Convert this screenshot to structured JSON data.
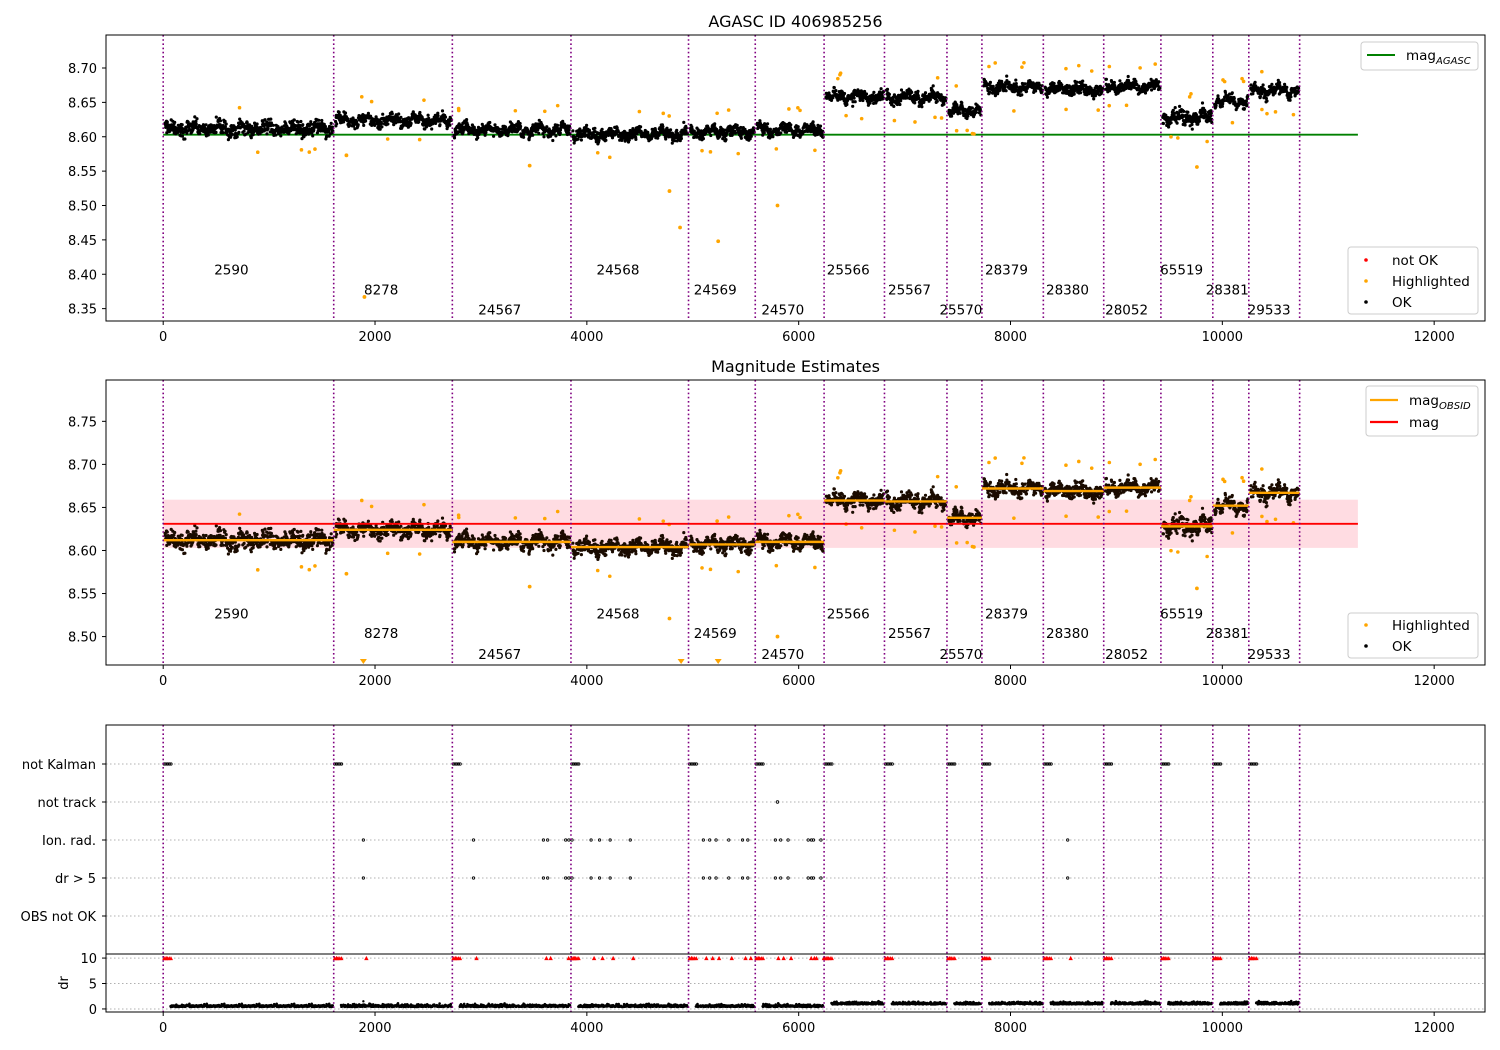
{
  "chart_data": [
    {
      "type": "scatter",
      "title": "AGASC ID 406985256",
      "xlim": [
        -540,
        12480
      ],
      "ylim": [
        8.332,
        8.748
      ],
      "x_ticks": [
        0,
        2000,
        4000,
        6000,
        8000,
        10000,
        12000
      ],
      "y_ticks": [
        8.35,
        8.4,
        8.45,
        8.5,
        8.55,
        8.6,
        8.65,
        8.7
      ],
      "grid": false,
      "reference_line": {
        "name": "mag_AGASC",
        "y": 8.603,
        "x_range": [
          0,
          11280
        ],
        "color": "#008000"
      },
      "obsids": [
        {
          "label": "2590",
          "start": 0,
          "end": 1610,
          "level": 8.612
        },
        {
          "label": "8278",
          "start": 1610,
          "end": 2730,
          "level": 8.624
        },
        {
          "label": "24567",
          "start": 2730,
          "end": 3850,
          "level": 8.61
        },
        {
          "label": "24568",
          "start": 3850,
          "end": 4960,
          "level": 8.604
        },
        {
          "label": "24569",
          "start": 4960,
          "end": 5590,
          "level": 8.607
        },
        {
          "label": "24570",
          "start": 5590,
          "end": 6240,
          "level": 8.61
        },
        {
          "label": "25566",
          "start": 6240,
          "end": 6810,
          "level": 8.658
        },
        {
          "label": "25567",
          "start": 6810,
          "end": 7400,
          "level": 8.657
        },
        {
          "label": "25570",
          "start": 7400,
          "end": 7730,
          "level": 8.638
        },
        {
          "label": "28379",
          "start": 7730,
          "end": 8310,
          "level": 8.672
        },
        {
          "label": "28380",
          "start": 8310,
          "end": 8880,
          "level": 8.669
        },
        {
          "label": "28052",
          "start": 8880,
          "end": 9420,
          "level": 8.673
        },
        {
          "label": "65519",
          "start": 9420,
          "end": 9910,
          "level": 8.628
        },
        {
          "label": "28381",
          "start": 9910,
          "end": 10250,
          "level": 8.652
        },
        {
          "label": "29533",
          "start": 10250,
          "end": 10730,
          "level": 8.667
        }
      ],
      "highlighted_outliers": [
        [
          1730,
          8.573
        ],
        [
          1900,
          8.367
        ],
        [
          3460,
          8.558
        ],
        [
          4780,
          8.521
        ],
        [
          4880,
          8.468
        ],
        [
          5240,
          8.448
        ],
        [
          5800,
          8.5
        ],
        [
          9760,
          8.556
        ]
      ],
      "legend": {
        "placement": "upper right, lower right",
        "entries": [
          "mag_AGASC",
          "not OK",
          "Highlighted",
          "OK"
        ]
      },
      "legend_top": {
        "main": "mag",
        "sub": "AGASC"
      },
      "legend_bottom": [
        "not OK",
        "Highlighted",
        "OK"
      ],
      "colors": {
        "ok": "#000000",
        "highlighted": "#ffa500",
        "not_ok": "#ff0000",
        "agasc": "#008000",
        "obsid_line": "#800080"
      }
    },
    {
      "type": "scatter",
      "title": "Magnitude Estimates",
      "xlim": [
        -540,
        12480
      ],
      "ylim": [
        8.467,
        8.798
      ],
      "x_ticks": [
        0,
        2000,
        4000,
        6000,
        8000,
        10000,
        12000
      ],
      "y_ticks": [
        8.5,
        8.55,
        8.6,
        8.65,
        8.7,
        8.75
      ],
      "grid": false,
      "mag": {
        "value": 8.631,
        "band": [
          8.603,
          8.659
        ],
        "x_range": [
          0,
          11280
        ],
        "color": "#ff0000"
      },
      "mag_obsid_color": "#ffa500",
      "highlighted_outliers": [
        [
          1730,
          8.573
        ],
        [
          3460,
          8.558
        ],
        [
          4780,
          8.521
        ],
        [
          5800,
          8.5
        ],
        [
          9760,
          8.556
        ]
      ],
      "offscale_markers_x": [
        1890,
        4890,
        5240
      ],
      "legend_top": [
        {
          "main": "mag",
          "sub": "OBSID"
        },
        {
          "main": "mag",
          "sub": ""
        }
      ],
      "legend_bottom": [
        "Highlighted",
        "OK"
      ],
      "legend": {
        "placement": "upper right, lower right"
      }
    },
    {
      "type": "scatter",
      "title": "",
      "xlim": [
        -540,
        12480
      ],
      "x_ticks": [
        0,
        2000,
        4000,
        6000,
        8000,
        10000,
        12000
      ],
      "flag_rows": [
        "not Kalman",
        "not track",
        "Ion. rad.",
        "dr > 5",
        "OBS not OK"
      ],
      "dr_axis": {
        "label": "dr",
        "ticks": [
          0,
          5,
          10
        ],
        "ylim": [
          -0.6,
          10.8
        ]
      },
      "not_kalman_x": [
        0,
        1610,
        2730,
        3850,
        4960,
        5590,
        6240,
        6810,
        7400,
        7730,
        8310,
        8880,
        9420,
        9910,
        10250
      ],
      "not_track_x": [
        5800
      ],
      "ion_rad_x": [
        1890,
        2930,
        3590,
        3630,
        3800,
        3830,
        3860,
        4040,
        4120,
        4220,
        4410,
        5100,
        5160,
        5220,
        5340,
        5470,
        5520,
        5780,
        5830,
        5900,
        6090,
        6120,
        6140,
        6210,
        8540
      ],
      "dr_gt5_x": [
        1890,
        2930,
        3590,
        3630,
        3800,
        3830,
        3860,
        4040,
        4120,
        4220,
        4410,
        5100,
        5160,
        5220,
        5340,
        5470,
        5520,
        5780,
        5830,
        5900,
        6090,
        6120,
        6140,
        6210,
        8540
      ],
      "colors": {
        "dr": "#000000",
        "dr_clip": "#ff0000",
        "grid": "#b0b0b0"
      }
    }
  ]
}
